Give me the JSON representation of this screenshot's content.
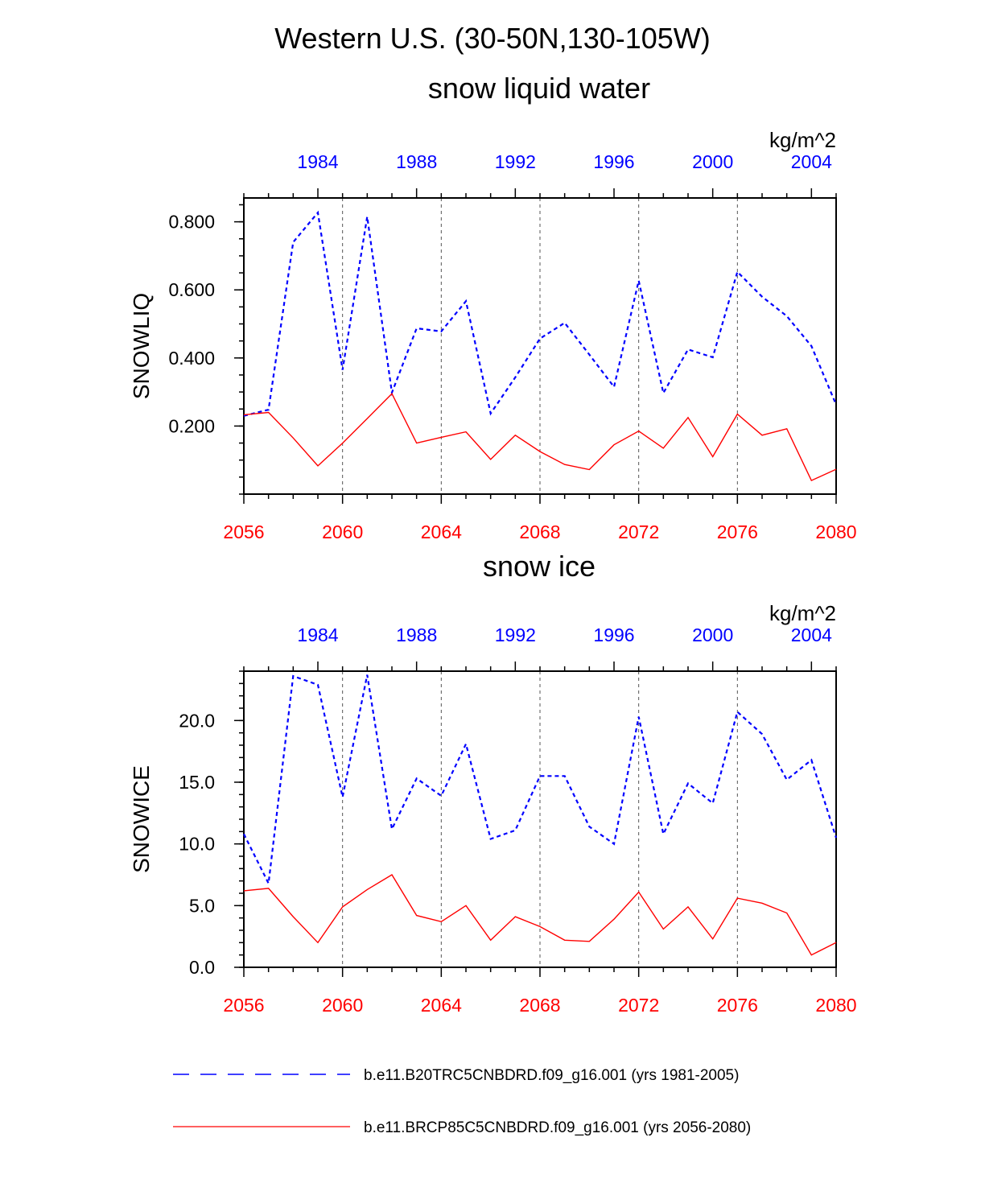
{
  "figure": {
    "title": "Western U.S. (30-50N,130-105W)"
  },
  "colors": {
    "historical": "#0000ff",
    "future": "#ff0000",
    "axis": "#000000",
    "grid": "#555555"
  },
  "legend": {
    "placement": "bottom",
    "entries": [
      {
        "label": "b.e11.B20TRC5CNBDRD.f09_g16.001 (yrs 1981-2005)",
        "style": "dashed",
        "color": "#0000ff"
      },
      {
        "label": "b.e11.BRCP85C5CNBDRD.f09_g16.001 (yrs 2056-2080)",
        "style": "solid",
        "color": "#ff0000"
      }
    ]
  },
  "chart_data": [
    {
      "type": "line",
      "title": "snow liquid water",
      "units": "kg/m^2",
      "ylabel": "SNOWLIQ",
      "ylim": [
        0.0,
        0.87
      ],
      "yticks": [
        0.2,
        0.4,
        0.6,
        0.8
      ],
      "ytick_labels": [
        "0.200",
        "0.400",
        "0.600",
        "0.800"
      ],
      "yminor_step": 0.05,
      "x_bottom": {
        "range": [
          2056,
          2080
        ],
        "ticks": [
          2056,
          2060,
          2064,
          2068,
          2072,
          2076,
          2080
        ],
        "color": "#ff0000"
      },
      "x_top": {
        "range": [
          1981,
          2005
        ],
        "ticks": [
          1984,
          1988,
          1992,
          1996,
          2000,
          2004
        ],
        "color": "#0000ff"
      },
      "grid": "vertical dashed at bottom ticks",
      "series": [
        {
          "name": "b.e11.B20TRC5CNBDRD.f09_g16.001 (yrs 1981-2005)",
          "axis": "top",
          "style": "dashed",
          "color": "#0000ff",
          "x": [
            1981,
            1982,
            1983,
            1984,
            1985,
            1986,
            1987,
            1988,
            1989,
            1990,
            1991,
            1992,
            1993,
            1994,
            1995,
            1996,
            1997,
            1998,
            1999,
            2000,
            2001,
            2002,
            2003,
            2004,
            2005
          ],
          "values": [
            0.23,
            0.248,
            0.74,
            0.827,
            0.365,
            0.815,
            0.298,
            0.487,
            0.478,
            0.567,
            0.237,
            0.343,
            0.457,
            0.503,
            0.41,
            0.315,
            0.627,
            0.297,
            0.425,
            0.402,
            0.653,
            0.58,
            0.523,
            0.435,
            0.263
          ]
        },
        {
          "name": "b.e11.BRCP85C5CNBDRD.f09_g16.001 (yrs 2056-2080)",
          "axis": "bottom",
          "style": "solid",
          "color": "#ff0000",
          "x": [
            2056,
            2057,
            2058,
            2059,
            2060,
            2061,
            2062,
            2063,
            2064,
            2065,
            2066,
            2067,
            2068,
            2069,
            2070,
            2071,
            2072,
            2073,
            2074,
            2075,
            2076,
            2077,
            2078,
            2079,
            2080
          ],
          "values": [
            0.233,
            0.24,
            0.165,
            0.083,
            0.15,
            0.222,
            0.295,
            0.15,
            0.167,
            0.183,
            0.102,
            0.173,
            0.125,
            0.087,
            0.072,
            0.145,
            0.185,
            0.135,
            0.225,
            0.11,
            0.235,
            0.173,
            0.192,
            0.04,
            0.073
          ]
        }
      ]
    },
    {
      "type": "line",
      "title": "snow ice",
      "units": "kg/m^2",
      "ylabel": "SNOWICE",
      "ylim": [
        0.0,
        24.0
      ],
      "yticks": [
        0,
        5,
        10,
        15,
        20
      ],
      "ytick_labels": [
        "0.0",
        "5.0",
        "10.0",
        "15.0",
        "20.0"
      ],
      "yminor_step": 1,
      "x_bottom": {
        "range": [
          2056,
          2080
        ],
        "ticks": [
          2056,
          2060,
          2064,
          2068,
          2072,
          2076,
          2080
        ],
        "color": "#ff0000"
      },
      "x_top": {
        "range": [
          1981,
          2005
        ],
        "ticks": [
          1984,
          1988,
          1992,
          1996,
          2000,
          2004
        ],
        "color": "#0000ff"
      },
      "grid": "vertical dashed at bottom ticks",
      "series": [
        {
          "name": "b.e11.B20TRC5CNBDRD.f09_g16.001 (yrs 1981-2005)",
          "axis": "top",
          "style": "dashed",
          "color": "#0000ff",
          "x": [
            1981,
            1982,
            1983,
            1984,
            1985,
            1986,
            1987,
            1988,
            1989,
            1990,
            1991,
            1992,
            1993,
            1994,
            1995,
            1996,
            1997,
            1998,
            1999,
            2000,
            2001,
            2002,
            2003,
            2004,
            2005
          ],
          "values": [
            10.8,
            6.8,
            23.6,
            22.9,
            13.8,
            23.7,
            11.2,
            15.3,
            13.9,
            18.1,
            10.4,
            11.1,
            15.5,
            15.5,
            11.4,
            10.0,
            20.3,
            10.8,
            14.9,
            13.3,
            20.7,
            18.9,
            15.2,
            16.8,
            10.5
          ]
        },
        {
          "name": "b.e11.BRCP85C5CNBDRD.f09_g16.001 (yrs 2056-2080)",
          "axis": "bottom",
          "style": "solid",
          "color": "#ff0000",
          "x": [
            2056,
            2057,
            2058,
            2059,
            2060,
            2061,
            2062,
            2063,
            2064,
            2065,
            2066,
            2067,
            2068,
            2069,
            2070,
            2071,
            2072,
            2073,
            2074,
            2075,
            2076,
            2077,
            2078,
            2079,
            2080
          ],
          "values": [
            6.2,
            6.4,
            4.1,
            2.0,
            4.9,
            6.3,
            7.5,
            4.2,
            3.7,
            5.0,
            2.2,
            4.1,
            3.3,
            2.2,
            2.1,
            3.9,
            6.1,
            3.1,
            4.9,
            2.3,
            5.6,
            5.2,
            4.4,
            1.0,
            2.0
          ]
        }
      ]
    }
  ]
}
